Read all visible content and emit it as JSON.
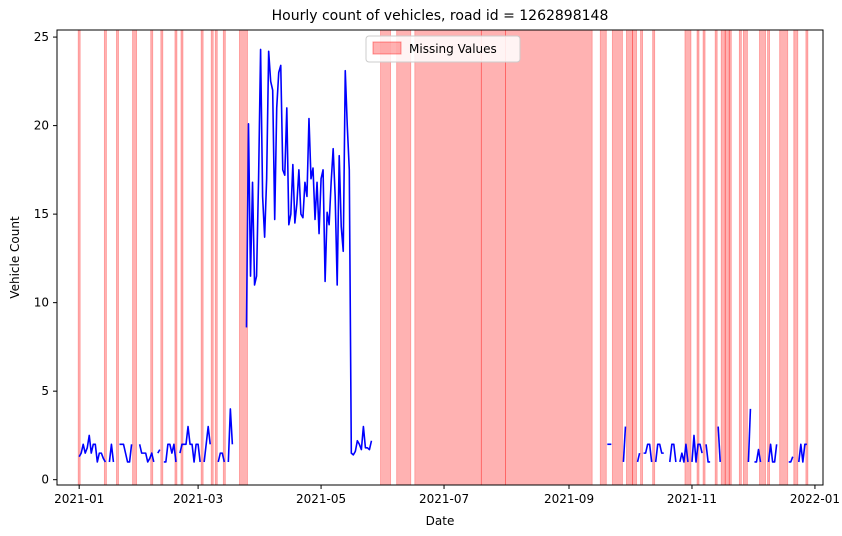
{
  "chart_data": {
    "type": "line",
    "title": "Hourly count of vehicles, road id = 1262898148",
    "xlabel": "Date",
    "ylabel": "Vehicle Count",
    "xlim": [
      "2020-12-21",
      "2022-01-05"
    ],
    "ylim": [
      -0.3,
      25.4
    ],
    "x_ticks": [
      "2021-01",
      "2021-03",
      "2021-05",
      "2021-07",
      "2021-09",
      "2021-11",
      "2022-01"
    ],
    "x_tick_dates": [
      "2021-01-01",
      "2021-03-01",
      "2021-05-01",
      "2021-07-01",
      "2021-09-01",
      "2021-11-01",
      "2022-01-01"
    ],
    "y_ticks": [
      0,
      5,
      10,
      15,
      20,
      25
    ],
    "grid": false,
    "legend": {
      "placement": "top-center",
      "entries": [
        "Missing Values"
      ]
    },
    "colors": {
      "line": "#0000ff",
      "missing": "#ff0000"
    },
    "series": [
      {
        "segments": [
          [
            [
              "2021-01-01",
              1.3
            ],
            [
              "2021-01-02",
              1.5
            ],
            [
              "2021-01-03",
              2.0
            ],
            [
              "2021-01-04",
              1.5
            ],
            [
              "2021-01-05",
              1.8
            ],
            [
              "2021-01-06",
              2.5
            ],
            [
              "2021-01-07",
              1.5
            ],
            [
              "2021-01-08",
              2.0
            ],
            [
              "2021-01-09",
              2.0
            ],
            [
              "2021-01-10",
              1.0
            ],
            [
              "2021-01-11",
              1.5
            ],
            [
              "2021-01-12",
              1.5
            ],
            [
              "2021-01-13",
              1.2
            ],
            [
              "2021-01-14",
              1.0
            ]
          ],
          [
            [
              "2021-01-16",
              1.0
            ],
            [
              "2021-01-17",
              2.0
            ],
            [
              "2021-01-18",
              1.0
            ]
          ],
          [
            [
              "2021-01-21",
              2.0
            ],
            [
              "2021-01-22",
              2.0
            ],
            [
              "2021-01-23",
              2.0
            ],
            [
              "2021-01-24",
              1.5
            ],
            [
              "2021-01-25",
              1.0
            ],
            [
              "2021-01-26",
              1.0
            ],
            [
              "2021-01-27",
              2.0
            ]
          ],
          [
            [
              "2021-01-31",
              2.0
            ],
            [
              "2021-02-01",
              1.5
            ],
            [
              "2021-02-02",
              1.5
            ],
            [
              "2021-02-03",
              1.5
            ],
            [
              "2021-02-04",
              1.0
            ],
            [
              "2021-02-05",
              1.2
            ],
            [
              "2021-02-06",
              1.5
            ],
            [
              "2021-02-07",
              1.0
            ]
          ],
          [
            [
              "2021-02-09",
              1.5
            ],
            [
              "2021-02-10",
              1.7
            ]
          ],
          [
            [
              "2021-02-12",
              1.0
            ],
            [
              "2021-02-13",
              1.0
            ],
            [
              "2021-02-14",
              2.0
            ],
            [
              "2021-02-15",
              2.0
            ],
            [
              "2021-02-16",
              1.5
            ],
            [
              "2021-02-17",
              2.0
            ],
            [
              "2021-02-18",
              1.0
            ]
          ],
          [
            [
              "2021-02-20",
              1.5
            ],
            [
              "2021-02-21",
              2.0
            ],
            [
              "2021-02-22",
              2.0
            ],
            [
              "2021-02-23",
              2.0
            ],
            [
              "2021-02-24",
              3.0
            ],
            [
              "2021-02-25",
              2.0
            ],
            [
              "2021-02-26",
              2.0
            ],
            [
              "2021-02-27",
              1.0
            ],
            [
              "2021-02-28",
              2.0
            ],
            [
              "2021-03-01",
              2.0
            ],
            [
              "2021-03-02",
              1.0
            ]
          ],
          [
            [
              "2021-03-04",
              1.0
            ],
            [
              "2021-03-05",
              2.0
            ],
            [
              "2021-03-06",
              3.0
            ],
            [
              "2021-03-07",
              2.0
            ]
          ],
          [
            [
              "2021-03-11",
              1.0
            ],
            [
              "2021-03-12",
              1.5
            ],
            [
              "2021-03-13",
              1.5
            ],
            [
              "2021-03-14",
              1.0
            ]
          ],
          [
            [
              "2021-03-16",
              1.0
            ],
            [
              "2021-03-17",
              4.0
            ],
            [
              "2021-03-18",
              2.0
            ]
          ],
          [
            [
              "2021-03-25",
              8.6
            ],
            [
              "2021-03-26",
              20.1
            ],
            [
              "2021-03-27",
              11.5
            ],
            [
              "2021-03-28",
              16.8
            ],
            [
              "2021-03-29",
              11.0
            ],
            [
              "2021-03-30",
              11.5
            ],
            [
              "2021-03-31",
              17.0
            ],
            [
              "2021-04-01",
              24.3
            ],
            [
              "2021-04-02",
              16.0
            ],
            [
              "2021-04-03",
              13.7
            ],
            [
              "2021-04-04",
              17.0
            ],
            [
              "2021-04-05",
              24.2
            ],
            [
              "2021-04-06",
              22.5
            ],
            [
              "2021-04-07",
              22.0
            ],
            [
              "2021-04-08",
              14.7
            ],
            [
              "2021-04-09",
              21.0
            ],
            [
              "2021-04-10",
              23.0
            ],
            [
              "2021-04-11",
              23.4
            ],
            [
              "2021-04-12",
              17.5
            ],
            [
              "2021-04-13",
              17.2
            ],
            [
              "2021-04-14",
              21.0
            ],
            [
              "2021-04-15",
              14.4
            ],
            [
              "2021-04-16",
              15.0
            ],
            [
              "2021-04-17",
              17.8
            ],
            [
              "2021-04-18",
              14.5
            ],
            [
              "2021-04-19",
              15.6
            ],
            [
              "2021-04-20",
              17.5
            ],
            [
              "2021-04-21",
              15.0
            ],
            [
              "2021-04-22",
              14.8
            ],
            [
              "2021-04-23",
              16.8
            ],
            [
              "2021-04-24",
              16.0
            ],
            [
              "2021-04-25",
              20.4
            ],
            [
              "2021-04-26",
              17.0
            ],
            [
              "2021-04-27",
              17.6
            ],
            [
              "2021-04-28",
              14.7
            ],
            [
              "2021-04-29",
              16.8
            ],
            [
              "2021-04-30",
              13.9
            ],
            [
              "2021-05-01",
              17.0
            ],
            [
              "2021-05-02",
              17.5
            ],
            [
              "2021-05-03",
              11.2
            ],
            [
              "2021-05-04",
              15.1
            ],
            [
              "2021-05-05",
              14.4
            ],
            [
              "2021-05-06",
              16.8
            ],
            [
              "2021-05-07",
              18.7
            ],
            [
              "2021-05-08",
              16.0
            ],
            [
              "2021-05-09",
              11.0
            ],
            [
              "2021-05-10",
              18.3
            ],
            [
              "2021-05-11",
              14.3
            ],
            [
              "2021-05-12",
              12.9
            ],
            [
              "2021-05-13",
              23.1
            ],
            [
              "2021-05-14",
              20.0
            ],
            [
              "2021-05-15",
              17.5
            ],
            [
              "2021-05-16",
              1.5
            ],
            [
              "2021-05-17",
              1.4
            ],
            [
              "2021-05-18",
              1.6
            ],
            [
              "2021-05-19",
              2.2
            ],
            [
              "2021-05-20",
              2.0
            ],
            [
              "2021-05-21",
              1.7
            ],
            [
              "2021-05-22",
              3.0
            ],
            [
              "2021-05-23",
              1.8
            ],
            [
              "2021-05-24",
              1.8
            ],
            [
              "2021-05-25",
              1.7
            ],
            [
              "2021-05-26",
              2.2
            ]
          ],
          [
            [
              "2021-09-20",
              2.0
            ],
            [
              "2021-09-21",
              2.0
            ],
            [
              "2021-09-22",
              2.0
            ]
          ],
          [
            [
              "2021-09-28",
              1.0
            ],
            [
              "2021-09-29",
              3.0
            ]
          ],
          [
            [
              "2021-10-05",
              1.0
            ],
            [
              "2021-10-06",
              1.5
            ]
          ],
          [
            [
              "2021-10-08",
              1.5
            ],
            [
              "2021-10-09",
              1.5
            ],
            [
              "2021-10-10",
              2.0
            ],
            [
              "2021-10-11",
              2.0
            ],
            [
              "2021-10-12",
              1.0
            ]
          ],
          [
            [
              "2021-10-14",
              1.0
            ],
            [
              "2021-10-15",
              2.0
            ],
            [
              "2021-10-16",
              2.0
            ],
            [
              "2021-10-17",
              1.5
            ],
            [
              "2021-10-18",
              1.5
            ]
          ],
          [
            [
              "2021-10-21",
              1.0
            ],
            [
              "2021-10-22",
              2.0
            ],
            [
              "2021-10-23",
              2.0
            ],
            [
              "2021-10-24",
              1.0
            ]
          ],
          [
            [
              "2021-10-26",
              1.0
            ],
            [
              "2021-10-27",
              1.5
            ],
            [
              "2021-10-28",
              1.0
            ],
            [
              "2021-10-29",
              2.0
            ],
            [
              "2021-10-30",
              1.0
            ]
          ],
          [
            [
              "2021-11-01",
              1.0
            ],
            [
              "2021-11-02",
              2.5
            ],
            [
              "2021-11-03",
              1.0
            ],
            [
              "2021-11-04",
              2.0
            ],
            [
              "2021-11-05",
              2.0
            ],
            [
              "2021-11-06",
              1.5
            ]
          ],
          [
            [
              "2021-11-08",
              2.0
            ],
            [
              "2021-11-09",
              1.0
            ],
            [
              "2021-11-10",
              1.0
            ]
          ],
          [
            [
              "2021-11-14",
              3.0
            ],
            [
              "2021-11-15",
              1.0
            ]
          ],
          [
            [
              "2021-11-29",
              1.0
            ],
            [
              "2021-11-30",
              4.0
            ]
          ],
          [
            [
              "2021-12-02",
              1.0
            ],
            [
              "2021-12-03",
              1.0
            ],
            [
              "2021-12-04",
              1.7
            ],
            [
              "2021-12-05",
              1.0
            ]
          ],
          [
            [
              "2021-12-09",
              1.0
            ],
            [
              "2021-12-10",
              2.0
            ],
            [
              "2021-12-11",
              1.0
            ],
            [
              "2021-12-12",
              1.0
            ],
            [
              "2021-12-13",
              2.0
            ]
          ],
          [
            [
              "2021-12-19",
              1.0
            ],
            [
              "2021-12-20",
              1.0
            ],
            [
              "2021-12-21",
              1.3
            ]
          ],
          [
            [
              "2021-12-24",
              1.0
            ],
            [
              "2021-12-25",
              2.0
            ],
            [
              "2021-12-26",
              1.0
            ],
            [
              "2021-12-27",
              2.0
            ],
            [
              "2021-12-28",
              2.0
            ]
          ]
        ]
      }
    ],
    "missing_ranges": [
      [
        "2021-01-01",
        "2021-01-01"
      ],
      [
        "2021-01-14",
        "2021-01-14"
      ],
      [
        "2021-01-20",
        "2021-01-20"
      ],
      [
        "2021-01-28",
        "2021-01-29"
      ],
      [
        "2021-02-06",
        "2021-02-06"
      ],
      [
        "2021-02-11",
        "2021-02-11"
      ],
      [
        "2021-02-18",
        "2021-02-18"
      ],
      [
        "2021-02-21",
        "2021-02-21"
      ],
      [
        "2021-03-03",
        "2021-03-03"
      ],
      [
        "2021-03-08",
        "2021-03-08"
      ],
      [
        "2021-03-10",
        "2021-03-10"
      ],
      [
        "2021-03-14",
        "2021-03-14"
      ],
      [
        "2021-03-22",
        "2021-03-25"
      ],
      [
        "2021-05-31",
        "2021-06-04"
      ],
      [
        "2021-06-08",
        "2021-06-14"
      ],
      [
        "2021-06-17",
        "2021-07-19"
      ],
      [
        "2021-07-20",
        "2021-07-31"
      ],
      [
        "2021-08-01",
        "2021-09-12"
      ],
      [
        "2021-09-17",
        "2021-09-19"
      ],
      [
        "2021-09-23",
        "2021-09-27"
      ],
      [
        "2021-09-30",
        "2021-10-02"
      ],
      [
        "2021-10-03",
        "2021-10-04"
      ],
      [
        "2021-10-07",
        "2021-10-07"
      ],
      [
        "2021-10-13",
        "2021-10-13"
      ],
      [
        "2021-10-29",
        "2021-10-31"
      ],
      [
        "2021-11-04",
        "2021-11-04"
      ],
      [
        "2021-11-07",
        "2021-11-07"
      ],
      [
        "2021-11-13",
        "2021-11-13"
      ],
      [
        "2021-11-16",
        "2021-11-17"
      ],
      [
        "2021-11-18",
        "2021-11-19"
      ],
      [
        "2021-11-20",
        "2021-11-20"
      ],
      [
        "2021-11-25",
        "2021-11-25"
      ],
      [
        "2021-11-27",
        "2021-11-28"
      ],
      [
        "2021-12-05",
        "2021-12-07"
      ],
      [
        "2021-12-09",
        "2021-12-09"
      ],
      [
        "2021-12-15",
        "2021-12-18"
      ],
      [
        "2021-12-22",
        "2021-12-23"
      ],
      [
        "2021-12-28",
        "2021-12-28"
      ]
    ]
  }
}
